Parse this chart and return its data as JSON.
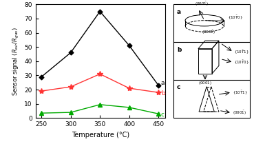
{
  "temperatures": [
    250,
    300,
    350,
    400,
    450
  ],
  "series_a": [
    29,
    46,
    75,
    51,
    23
  ],
  "series_b": [
    19,
    22,
    31,
    21,
    18
  ],
  "series_c": [
    3.5,
    4,
    9.5,
    7.5,
    3
  ],
  "color_a": "#000000",
  "color_b": "#ff3333",
  "color_c": "#00aa00",
  "marker_a": "D",
  "marker_b": "*",
  "marker_c": "^",
  "label_a": "a",
  "label_b": "b",
  "label_c": "c",
  "xlabel": "Temperature (°C)",
  "ylim": [
    0,
    80
  ],
  "xlim": [
    240,
    462
  ],
  "xticks": [
    250,
    300,
    350,
    400,
    450
  ],
  "yticks": [
    0,
    10,
    20,
    30,
    40,
    50,
    60,
    70,
    80
  ],
  "background_color": "#ffffff"
}
